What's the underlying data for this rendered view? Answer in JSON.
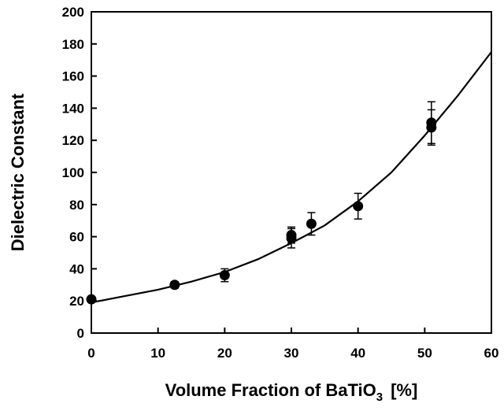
{
  "chart_data": {
    "type": "scatter",
    "title": "",
    "xlabel_main": "Volume Fraction of BaTiO",
    "xlabel_sub": "3",
    "xlabel_unit": "[%]",
    "ylabel": "Dielectric Constant",
    "xlim": [
      0,
      60
    ],
    "ylim": [
      0,
      200
    ],
    "x_ticks": [
      0,
      10,
      20,
      30,
      40,
      50,
      60
    ],
    "y_ticks": [
      0,
      20,
      40,
      60,
      80,
      100,
      120,
      140,
      160,
      180,
      200
    ],
    "grid": false,
    "legend": "none",
    "points": [
      {
        "x": 0,
        "y": 21,
        "err": 0
      },
      {
        "x": 12.5,
        "y": 30,
        "err": 2
      },
      {
        "x": 20,
        "y": 36,
        "err": 4
      },
      {
        "x": 30,
        "y": 61,
        "err": 5
      },
      {
        "x": 30,
        "y": 59,
        "err": 6
      },
      {
        "x": 33,
        "y": 68,
        "err": 7
      },
      {
        "x": 40,
        "y": 79,
        "err": 8
      },
      {
        "x": 51,
        "y": 131,
        "err": 13
      },
      {
        "x": 51,
        "y": 128,
        "err": 11
      }
    ],
    "fit_curve": {
      "x": [
        0,
        5,
        10,
        15,
        20,
        25,
        30,
        35,
        40,
        45,
        50,
        55,
        60
      ],
      "y": [
        19,
        23,
        27,
        32,
        38,
        46,
        56,
        67,
        82,
        100,
        123,
        148,
        175
      ]
    },
    "colors": {
      "marker": "#000000",
      "line": "#000000"
    }
  }
}
